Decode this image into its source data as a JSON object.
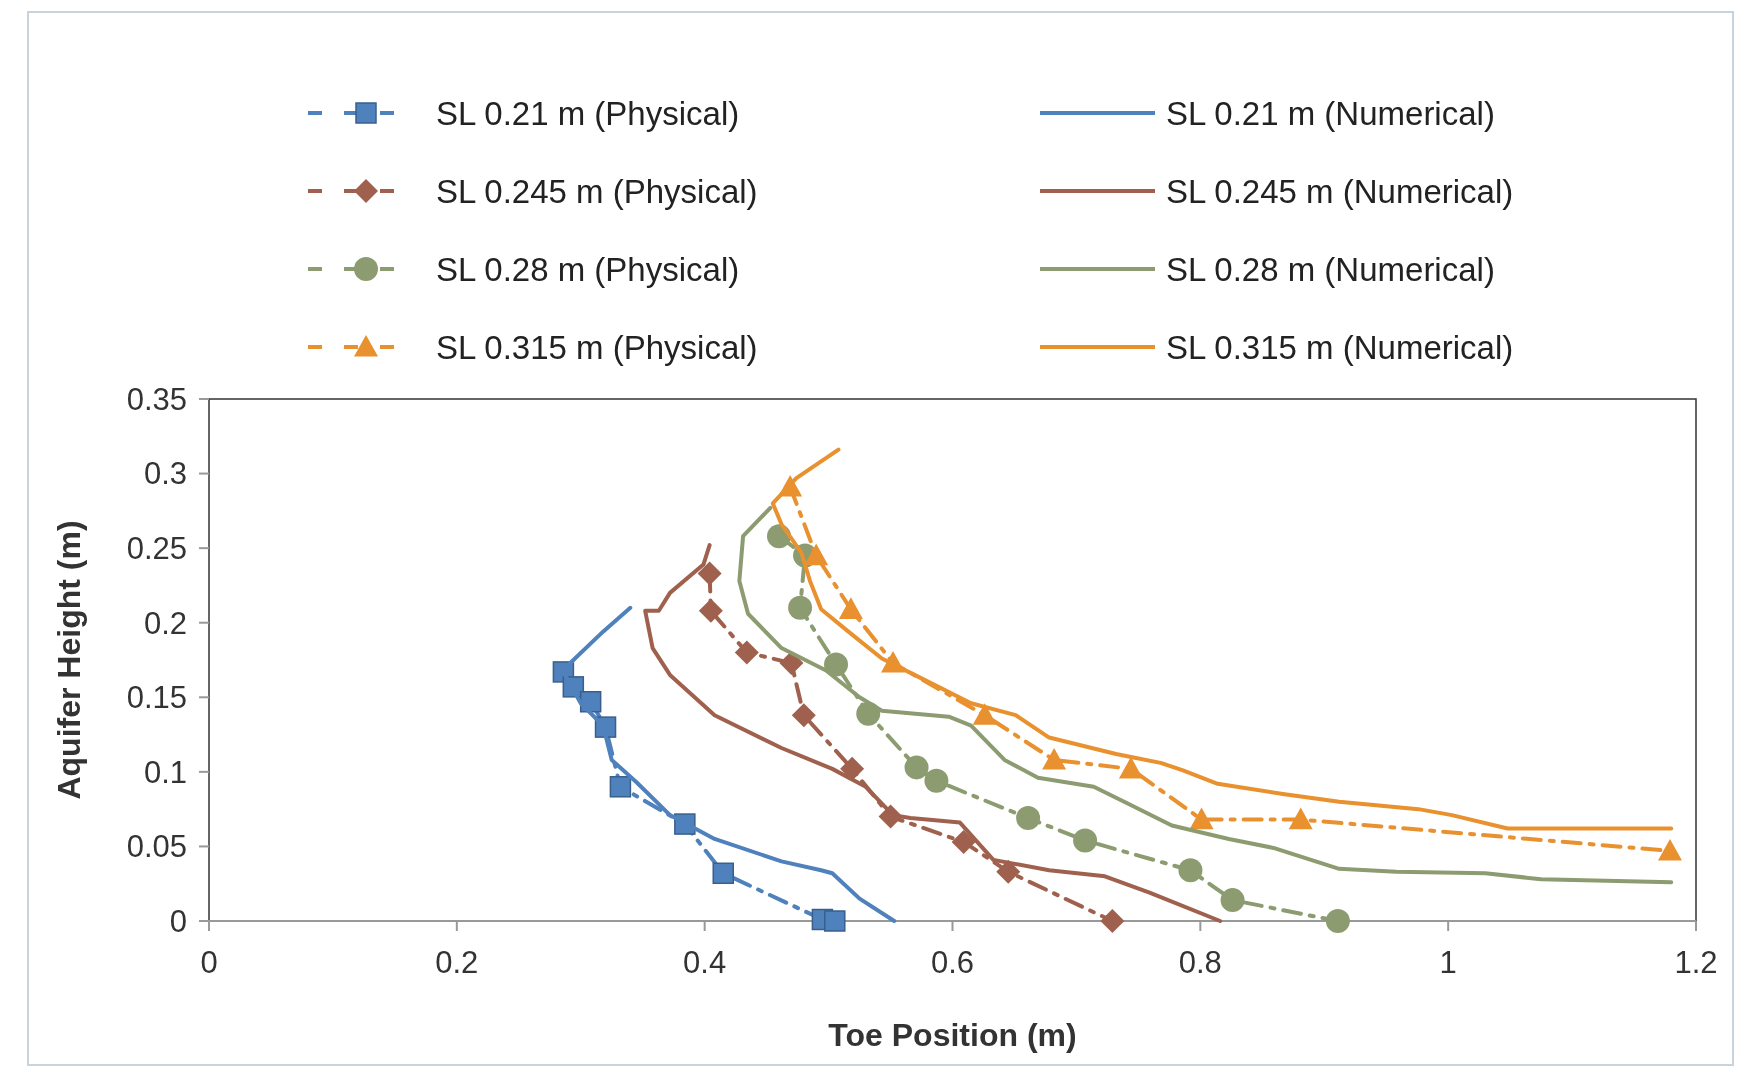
{
  "chart_data": {
    "type": "line",
    "xlabel": "Toe Position  (m)",
    "ylabel": "Aquifer Height (m)",
    "xlim": [
      0,
      1.2
    ],
    "xticks": [
      0,
      0.2,
      0.4,
      0.6,
      0.8,
      1,
      1.2
    ],
    "ylim": [
      0,
      0.35
    ],
    "yticks": [
      0,
      0.05,
      0.1,
      0.15,
      0.2,
      0.25,
      0.3,
      0.35
    ],
    "grid": false,
    "legend": "top",
    "series": [
      {
        "name": "SL 0.21 m (Physical)",
        "color": "#4f81bd",
        "marker": "square",
        "line_style": "dashed",
        "x": [
          0.286,
          0.294,
          0.308,
          0.32,
          0.332,
          0.384,
          0.415,
          0.495,
          0.505
        ],
        "values": [
          0.167,
          0.157,
          0.147,
          0.13,
          0.09,
          0.065,
          0.032,
          0.001,
          0
        ]
      },
      {
        "name": "SL 0.245 m (Physical)",
        "color": "#a0604e",
        "marker": "diamond",
        "line_style": "dashed",
        "x": [
          0.404,
          0.405,
          0.434,
          0.47,
          0.48,
          0.519,
          0.55,
          0.609,
          0.645,
          0.729
        ],
        "values": [
          0.233,
          0.208,
          0.18,
          0.173,
          0.138,
          0.102,
          0.07,
          0.053,
          0.033,
          0
        ]
      },
      {
        "name": "SL 0.28 m (Physical)",
        "color": "#8c9c70",
        "marker": "circle",
        "line_style": "dashed",
        "x": [
          0.46,
          0.481,
          0.477,
          0.506,
          0.532,
          0.571,
          0.587,
          0.661,
          0.707,
          0.792,
          0.826,
          0.911
        ],
        "values": [
          0.258,
          0.245,
          0.21,
          0.172,
          0.139,
          0.103,
          0.094,
          0.069,
          0.054,
          0.034,
          0.014,
          0
        ]
      },
      {
        "name": "SL 0.315 m (Physical)",
        "color": "#e8912e",
        "marker": "triangle",
        "line_style": "dashed",
        "x": [
          0.469,
          0.49,
          0.518,
          0.552,
          0.626,
          0.682,
          0.744,
          0.801,
          0.881,
          1.179
        ],
        "values": [
          0.291,
          0.245,
          0.209,
          0.173,
          0.138,
          0.108,
          0.102,
          0.068,
          0.068,
          0.047
        ]
      },
      {
        "name": "SL 0.21 m (Numerical)",
        "color": "#4f81bd",
        "marker": "none",
        "line_style": "solid",
        "x": [
          0.34,
          0.318,
          0.289,
          0.286,
          0.3,
          0.318,
          0.325,
          0.345,
          0.372,
          0.408,
          0.462,
          0.494,
          0.503,
          0.525,
          0.553
        ],
        "values": [
          0.21,
          0.194,
          0.171,
          0.167,
          0.146,
          0.131,
          0.108,
          0.093,
          0.071,
          0.055,
          0.04,
          0.034,
          0.032,
          0.015,
          0
        ]
      },
      {
        "name": "SL 0.245 m (Numerical)",
        "color": "#a0604e",
        "marker": "none",
        "line_style": "solid",
        "x": [
          0.404,
          0.399,
          0.372,
          0.363,
          0.352,
          0.358,
          0.372,
          0.408,
          0.462,
          0.503,
          0.53,
          0.552,
          0.566,
          0.606,
          0.633,
          0.678,
          0.723,
          0.759,
          0.816
        ],
        "values": [
          0.252,
          0.239,
          0.22,
          0.208,
          0.208,
          0.183,
          0.165,
          0.138,
          0.116,
          0.102,
          0.09,
          0.071,
          0.069,
          0.066,
          0.041,
          0.034,
          0.03,
          0.019,
          0
        ]
      },
      {
        "name": "SL 0.28 m (Numerical)",
        "color": "#8c9c70",
        "marker": "none",
        "line_style": "solid",
        "x": [
          0.453,
          0.431,
          0.428,
          0.435,
          0.462,
          0.498,
          0.525,
          0.543,
          0.597,
          0.615,
          0.642,
          0.669,
          0.714,
          0.741,
          0.777,
          0.823,
          0.859,
          0.912,
          0.958,
          1.03,
          1.075,
          1.18
        ],
        "values": [
          0.277,
          0.258,
          0.228,
          0.206,
          0.183,
          0.168,
          0.15,
          0.141,
          0.137,
          0.131,
          0.108,
          0.096,
          0.09,
          0.079,
          0.064,
          0.055,
          0.049,
          0.035,
          0.033,
          0.032,
          0.028,
          0.026
        ]
      },
      {
        "name": "SL 0.315 m (Numerical)",
        "color": "#e8912e",
        "marker": "none",
        "line_style": "solid",
        "x": [
          0.508,
          0.474,
          0.455,
          0.462,
          0.478,
          0.485,
          0.494,
          0.516,
          0.543,
          0.579,
          0.615,
          0.651,
          0.678,
          0.732,
          0.768,
          0.786,
          0.814,
          0.868,
          0.912,
          0.976,
          1.003,
          1.048,
          1.18
        ],
        "values": [
          0.316,
          0.297,
          0.28,
          0.266,
          0.247,
          0.228,
          0.209,
          0.194,
          0.176,
          0.161,
          0.146,
          0.138,
          0.123,
          0.112,
          0.106,
          0.101,
          0.092,
          0.085,
          0.08,
          0.075,
          0.071,
          0.062,
          0.062
        ]
      }
    ]
  }
}
